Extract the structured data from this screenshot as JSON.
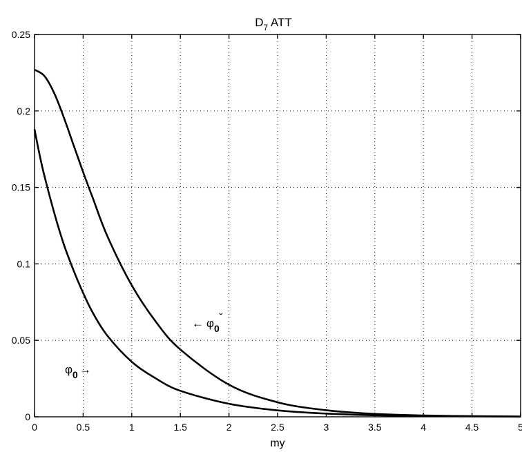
{
  "chart_data": {
    "type": "line",
    "title_main": "D",
    "title_sub": "7",
    "title_rest": " ATT",
    "xlabel": "my",
    "ylabel": "",
    "xlim": [
      0,
      5
    ],
    "ylim": [
      0,
      0.25
    ],
    "x_ticks": [
      "0",
      "0.5",
      "1",
      "1.5",
      "2",
      "2.5",
      "3",
      "3.5",
      "4",
      "4.5",
      "5"
    ],
    "y_ticks": [
      "0",
      "0.05",
      "0.1",
      "0.15",
      "0.2",
      "0.25"
    ],
    "grid": true,
    "annotations": [
      {
        "arrow": "←",
        "symbol": "φ",
        "accent": "ˇ",
        "subscript": "0",
        "points_to": "upper curve"
      },
      {
        "arrow": "→",
        "symbol": "φ",
        "subscript": "0",
        "points_to": "lower curve"
      }
    ],
    "series": [
      {
        "x": [
          0,
          0.1,
          0.2,
          0.3,
          0.4,
          0.5,
          0.6,
          0.75,
          1.0,
          1.25,
          1.5,
          2.0,
          2.5,
          3.0,
          3.5,
          4.0,
          4.5,
          5.0
        ],
        "y": [
          0.227,
          0.223,
          0.212,
          0.196,
          0.178,
          0.16,
          0.143,
          0.118,
          0.086,
          0.062,
          0.044,
          0.021,
          0.0095,
          0.0043,
          0.0019,
          0.0009,
          0.0004,
          0.0002
        ]
      },
      {
        "x": [
          0,
          0.05,
          0.1,
          0.2,
          0.3,
          0.4,
          0.5,
          0.6,
          0.75,
          1.0,
          1.25,
          1.5,
          2.0,
          2.5,
          3.0,
          3.5,
          4.0,
          4.5,
          5.0
        ],
        "y": [
          0.188,
          0.172,
          0.158,
          0.134,
          0.113,
          0.096,
          0.081,
          0.068,
          0.053,
          0.036,
          0.025,
          0.017,
          0.0085,
          0.0042,
          0.0021,
          0.001,
          0.0005,
          0.0003,
          0.0001
        ]
      }
    ]
  }
}
